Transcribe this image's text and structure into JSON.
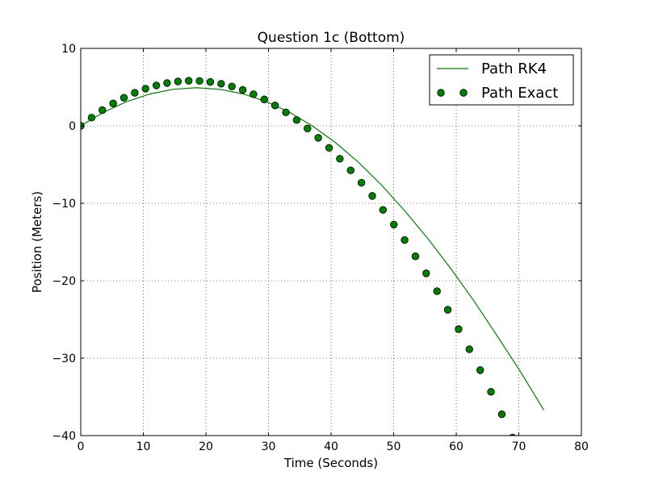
{
  "chart_data": {
    "type": "line",
    "title": "Question 1c (Bottom)",
    "xlabel": "Time (Seconds)",
    "ylabel": "Position (Meters)",
    "xlim": [
      0,
      80
    ],
    "ylim": [
      -40,
      10
    ],
    "xticks": [
      0,
      10,
      20,
      30,
      40,
      50,
      60,
      70,
      80
    ],
    "yticks": [
      -40,
      -30,
      -20,
      -10,
      0,
      10
    ],
    "xtick_labels": [
      "0",
      "10",
      "20",
      "30",
      "40",
      "50",
      "60",
      "70",
      "80"
    ],
    "ytick_labels": [
      "−40",
      "−30",
      "−20",
      "−10",
      "0",
      "10"
    ],
    "grid": true,
    "legend_position": "top-right",
    "series": [
      {
        "name": "Path RK4",
        "style": "line",
        "color": "#008000",
        "x": [
          0,
          3.7,
          7.4,
          11.1,
          14.8,
          18.5,
          22.2,
          25.9,
          29.6,
          33.3,
          37.0,
          40.7,
          44.4,
          48.1,
          51.8,
          55.5,
          59.2,
          62.9,
          66.6,
          70.3,
          74.0
        ],
        "y": [
          0,
          1.77,
          3.15,
          4.13,
          4.72,
          4.92,
          4.72,
          4.13,
          3.15,
          1.77,
          0,
          -2.16,
          -4.72,
          -7.68,
          -11.0,
          -14.6,
          -18.5,
          -22.7,
          -27.2,
          -31.8,
          -36.7
        ]
      },
      {
        "name": "Path Exact",
        "style": "markers",
        "color": "#008000",
        "x": [
          0,
          1.73,
          3.45,
          5.18,
          6.9,
          8.63,
          10.35,
          12.08,
          13.8,
          15.53,
          17.25,
          18.98,
          20.7,
          22.43,
          24.15,
          25.88,
          27.6,
          29.33,
          31.05,
          32.78,
          34.5,
          36.23,
          37.95,
          39.68,
          41.4,
          43.13,
          44.85,
          46.58,
          48.3,
          50.03,
          51.75,
          53.48,
          55.2,
          56.93,
          58.65,
          60.38,
          62.1,
          63.83,
          65.55,
          67.28,
          69.0
        ],
        "y": [
          0,
          1.06,
          2.03,
          2.89,
          3.63,
          4.27,
          4.8,
          5.22,
          5.53,
          5.73,
          5.82,
          5.8,
          5.67,
          5.44,
          5.09,
          4.64,
          4.08,
          3.41,
          2.63,
          1.74,
          0.75,
          -0.35,
          -1.55,
          -2.85,
          -4.25,
          -5.75,
          -7.35,
          -9.05,
          -10.85,
          -12.75,
          -14.75,
          -16.85,
          -19.05,
          -21.35,
          -23.75,
          -26.25,
          -28.85,
          -31.55,
          -34.35,
          -37.25,
          -40.25
        ]
      }
    ]
  }
}
